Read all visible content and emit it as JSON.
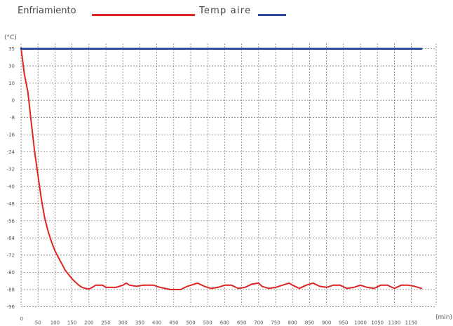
{
  "legend": {
    "items": [
      {
        "label": "Enfriamiento",
        "color": "#e02424"
      },
      {
        "label": "Temp aire",
        "color": "#2b4ea0"
      }
    ]
  },
  "chart_data": {
    "type": "line",
    "title": "",
    "xlabel": "(min)",
    "ylabel": "(°C)",
    "grid": true,
    "legend_position": "top-left",
    "x_ticks": [
      0,
      50,
      100,
      150,
      200,
      250,
      300,
      350,
      400,
      450,
      500,
      550,
      600,
      650,
      700,
      750,
      800,
      850,
      900,
      950,
      1000,
      1050,
      1100,
      1150
    ],
    "y_ticks": [
      35,
      30,
      10,
      0,
      -8,
      -16,
      -24,
      -32,
      -40,
      -48,
      -56,
      -64,
      -72,
      -80,
      -88,
      -96
    ],
    "xlim": [
      0,
      1180
    ],
    "series": [
      {
        "name": "Enfriamiento",
        "color": "#e02424",
        "points": [
          [
            0,
            36
          ],
          [
            10,
            20
          ],
          [
            20,
            5
          ],
          [
            30,
            -10
          ],
          [
            40,
            -24
          ],
          [
            50,
            -35
          ],
          [
            60,
            -46
          ],
          [
            70,
            -55
          ],
          [
            80,
            -61
          ],
          [
            90,
            -66
          ],
          [
            100,
            -70
          ],
          [
            110,
            -73
          ],
          [
            120,
            -76
          ],
          [
            130,
            -79
          ],
          [
            140,
            -81
          ],
          [
            150,
            -83
          ],
          [
            160,
            -84.5
          ],
          [
            170,
            -86
          ],
          [
            180,
            -87
          ],
          [
            190,
            -87.5
          ],
          [
            200,
            -87.8
          ],
          [
            210,
            -87
          ],
          [
            220,
            -86
          ],
          [
            240,
            -86
          ],
          [
            250,
            -87
          ],
          [
            280,
            -87
          ],
          [
            300,
            -86
          ],
          [
            310,
            -85
          ],
          [
            320,
            -86
          ],
          [
            340,
            -86.5
          ],
          [
            360,
            -86
          ],
          [
            390,
            -86
          ],
          [
            410,
            -87
          ],
          [
            440,
            -88
          ],
          [
            470,
            -88
          ],
          [
            490,
            -86.5
          ],
          [
            520,
            -85
          ],
          [
            540,
            -86.5
          ],
          [
            560,
            -87.5
          ],
          [
            580,
            -87
          ],
          [
            600,
            -86
          ],
          [
            620,
            -86
          ],
          [
            640,
            -87.5
          ],
          [
            660,
            -87
          ],
          [
            680,
            -85.5
          ],
          [
            700,
            -85
          ],
          [
            710,
            -86.5
          ],
          [
            730,
            -87.5
          ],
          [
            750,
            -87
          ],
          [
            770,
            -86
          ],
          [
            790,
            -85
          ],
          [
            800,
            -86
          ],
          [
            820,
            -87.5
          ],
          [
            840,
            -86
          ],
          [
            860,
            -85
          ],
          [
            880,
            -86.5
          ],
          [
            900,
            -87
          ],
          [
            920,
            -86
          ],
          [
            940,
            -86
          ],
          [
            960,
            -87.5
          ],
          [
            980,
            -87
          ],
          [
            1000,
            -86
          ],
          [
            1020,
            -87
          ],
          [
            1040,
            -87.5
          ],
          [
            1060,
            -86
          ],
          [
            1080,
            -86
          ],
          [
            1100,
            -87.5
          ],
          [
            1120,
            -86
          ],
          [
            1140,
            -86
          ],
          [
            1160,
            -86.5
          ],
          [
            1180,
            -87.5
          ]
        ]
      },
      {
        "name": "Temp aire",
        "color": "#2b4ea0",
        "points": [
          [
            0,
            35
          ],
          [
            1180,
            35
          ]
        ]
      }
    ]
  }
}
